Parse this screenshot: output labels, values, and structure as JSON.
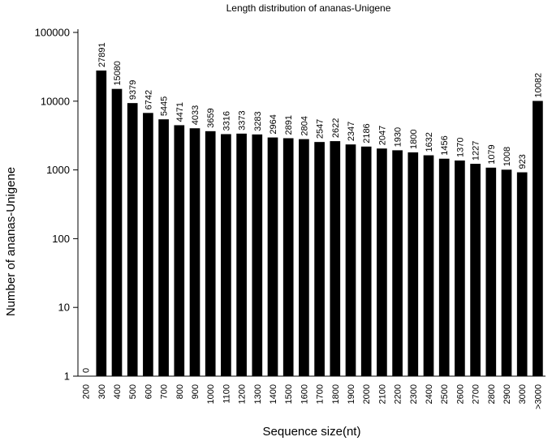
{
  "chart_data": {
    "type": "bar",
    "title": "Length distribution of ananas-Unigene",
    "xlabel": "Sequence size(nt)",
    "ylabel": "Number of ananas-Unigene",
    "yscale": "log",
    "ylim": [
      1,
      100000
    ],
    "yticks": [
      "1",
      "10",
      "100",
      "1000",
      "10000",
      "100000"
    ],
    "grid": false,
    "categories": [
      "200",
      "300",
      "400",
      "500",
      "600",
      "700",
      "800",
      "900",
      "1000",
      "1100",
      "1200",
      "1300",
      "1400",
      "1500",
      "1600",
      "1700",
      "1800",
      "1900",
      "2000",
      "2100",
      "2200",
      "2300",
      "2400",
      "2500",
      "2600",
      "2700",
      "2800",
      "2900",
      "3000",
      ">3000"
    ],
    "values": [
      0,
      27891,
      15080,
      9379,
      6742,
      5445,
      4471,
      4033,
      3659,
      3316,
      3373,
      3283,
      2964,
      2891,
      2804,
      2547,
      2622,
      2347,
      2186,
      2047,
      1930,
      1800,
      1632,
      1456,
      1370,
      1227,
      1079,
      1008,
      923,
      10082
    ],
    "bar_color": "#000000"
  }
}
